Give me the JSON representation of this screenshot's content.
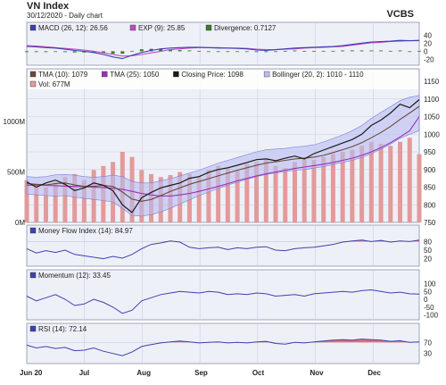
{
  "header": {
    "title": "VN Index",
    "subtitle": "30/12/2020 - Daily chart",
    "source": "VCBS"
  },
  "colors": {
    "panel_bg": "#eef0f8",
    "grid": "#c9cde0",
    "price_line": "#1a1a1a",
    "tma10": "#6b4a3a",
    "tma25": "#9a2fb8",
    "band_fill": "#b9bdf0",
    "band_line": "#7a80d8",
    "volume": "#e39a9a",
    "macd": "#3b3fb0",
    "exp": "#c24ac2",
    "divergence": "#3a7a2a",
    "osc_line": "#4040b0",
    "overbought_fill": "#e05a5a"
  },
  "chart_data": {
    "type": "line",
    "x_labels": [
      "Jun 20",
      "Jul",
      "Aug",
      "Sep",
      "Oct",
      "Nov",
      "Dec"
    ],
    "macd_panel": {
      "legend": [
        {
          "label": "MACD (26, 12): 26.56",
          "swatch": "macd"
        },
        {
          "label": "EXP (9): 25.85",
          "swatch": "exp"
        },
        {
          "label": "Divergence: 0.7127",
          "swatch": "divergence"
        }
      ],
      "ticks": [
        "40",
        "20",
        "0",
        "-20"
      ],
      "ylim": [
        -30,
        45
      ],
      "macd": [
        12,
        11,
        9,
        8,
        5,
        2,
        0,
        -3,
        -8,
        -14,
        -18,
        -10,
        -3,
        2,
        6,
        8,
        9,
        10,
        10,
        9,
        8,
        8,
        7,
        6,
        3,
        2,
        4,
        6,
        8,
        9,
        10,
        11,
        12,
        14,
        17,
        20,
        23,
        24,
        25,
        27,
        26,
        27
      ],
      "exp": [
        14,
        13,
        11,
        9,
        7,
        5,
        3,
        0,
        -4,
        -8,
        -12,
        -11,
        -8,
        -4,
        0,
        4,
        6,
        8,
        9,
        9,
        9,
        8,
        8,
        7,
        5,
        4,
        4,
        5,
        6,
        8,
        9,
        10,
        11,
        12,
        15,
        18,
        21,
        22,
        24,
        25,
        26,
        26
      ],
      "divergence": [
        -2,
        -2,
        -2,
        -1,
        -2,
        -3,
        -3,
        -3,
        -4,
        -6,
        -6,
        1,
        5,
        6,
        6,
        4,
        3,
        2,
        1,
        0,
        -1,
        0,
        -1,
        -1,
        -2,
        -2,
        0,
        1,
        2,
        1,
        1,
        1,
        1,
        2,
        2,
        2,
        2,
        2,
        1,
        2,
        0,
        1
      ]
    },
    "price_panel": {
      "legend": [
        {
          "label": "TMA (10): 1079",
          "swatch": "tma10"
        },
        {
          "label": "TMA (25): 1050",
          "swatch": "tma25"
        },
        {
          "label": "Closing Price: 1098",
          "swatch": "price_line"
        },
        {
          "label": "Bollinger (20, 2): 1010 - 1110",
          "swatch": "band_fill"
        },
        {
          "label": "Vol: 677M",
          "swatch": "volume"
        }
      ],
      "right_ticks": [
        "1150",
        "1100",
        "1050",
        "1000",
        "950",
        "900",
        "850",
        "800",
        "750"
      ],
      "left_ticks": [
        "1000M",
        "500M",
        "0M"
      ],
      "ylim": [
        750,
        1150
      ],
      "vol_lim": [
        0,
        1400
      ],
      "close": [
        865,
        850,
        862,
        870,
        858,
        840,
        848,
        862,
        855,
        840,
        800,
        778,
        820,
        835,
        848,
        855,
        862,
        875,
        880,
        892,
        900,
        905,
        912,
        920,
        928,
        930,
        925,
        932,
        938,
        930,
        945,
        955,
        965,
        975,
        985,
        1000,
        1025,
        1040,
        1060,
        1085,
        1075,
        1098
      ],
      "tma10": [
        860,
        858,
        856,
        860,
        862,
        856,
        852,
        852,
        855,
        852,
        836,
        816,
        810,
        815,
        826,
        838,
        848,
        858,
        866,
        874,
        882,
        890,
        898,
        905,
        912,
        918,
        922,
        926,
        930,
        932,
        935,
        940,
        948,
        956,
        965,
        976,
        990,
        1005,
        1022,
        1042,
        1060,
        1079
      ],
      "tma25": [
        855,
        856,
        855,
        854,
        853,
        852,
        851,
        850,
        849,
        847,
        844,
        838,
        832,
        828,
        825,
        825,
        828,
        832,
        838,
        845,
        852,
        860,
        868,
        875,
        882,
        888,
        893,
        898,
        903,
        907,
        911,
        915,
        920,
        926,
        932,
        940,
        950,
        962,
        976,
        992,
        1010,
        1050
      ],
      "boll_upper": [
        880,
        878,
        880,
        885,
        886,
        884,
        880,
        878,
        880,
        884,
        880,
        866,
        862,
        862,
        868,
        874,
        882,
        890,
        898,
        908,
        918,
        926,
        934,
        942,
        950,
        956,
        958,
        960,
        964,
        966,
        970,
        978,
        988,
        998,
        1010,
        1025,
        1045,
        1062,
        1078,
        1095,
        1105,
        1110
      ],
      "boll_lower": [
        830,
        828,
        826,
        825,
        826,
        822,
        818,
        815,
        812,
        808,
        790,
        770,
        768,
        772,
        780,
        790,
        802,
        814,
        826,
        836,
        846,
        856,
        864,
        872,
        880,
        886,
        890,
        894,
        898,
        900,
        904,
        908,
        914,
        920,
        926,
        934,
        945,
        958,
        972,
        988,
        1000,
        1010
      ],
      "volume": [
        420,
        380,
        350,
        400,
        450,
        480,
        420,
        520,
        560,
        600,
        700,
        650,
        520,
        480,
        450,
        470,
        500,
        480,
        460,
        520,
        560,
        540,
        520,
        580,
        600,
        620,
        560,
        540,
        600,
        640,
        620,
        650,
        680,
        700,
        720,
        760,
        800,
        780,
        760,
        800,
        840,
        677
      ]
    },
    "mfi_panel": {
      "legend": [
        {
          "label": "Money Flow Index (14): 84.97",
          "swatch": "osc_line"
        }
      ],
      "ticks": [
        "80",
        "50",
        "20"
      ],
      "ylim": [
        0,
        100
      ],
      "threshold": 80,
      "values": [
        55,
        40,
        48,
        42,
        50,
        35,
        30,
        25,
        20,
        28,
        22,
        35,
        55,
        70,
        75,
        82,
        78,
        60,
        55,
        58,
        60,
        52,
        58,
        55,
        60,
        62,
        50,
        48,
        55,
        58,
        60,
        65,
        70,
        78,
        82,
        85,
        80,
        84,
        78,
        82,
        80,
        85
      ]
    },
    "momentum_panel": {
      "legend": [
        {
          "label": "Momentum (12): 33.45",
          "swatch": "osc_line"
        }
      ],
      "ticks": [
        "100",
        "50",
        "0",
        "-50",
        "-100"
      ],
      "ylim": [
        -120,
        120
      ],
      "values": [
        20,
        -10,
        10,
        30,
        0,
        -40,
        -30,
        0,
        -20,
        -50,
        -90,
        -70,
        -10,
        10,
        30,
        40,
        50,
        45,
        40,
        50,
        45,
        30,
        35,
        30,
        40,
        35,
        20,
        25,
        30,
        20,
        35,
        40,
        45,
        50,
        45,
        55,
        60,
        50,
        40,
        45,
        35,
        33
      ]
    },
    "rsi_panel": {
      "legend": [
        {
          "label": "RSI (14): 72.14",
          "swatch": "osc_line"
        }
      ],
      "ticks": [
        "70",
        "30"
      ],
      "ylim": [
        0,
        100
      ],
      "threshold": 70,
      "values": [
        60,
        50,
        55,
        48,
        52,
        40,
        42,
        50,
        38,
        30,
        22,
        35,
        55,
        62,
        68,
        72,
        75,
        72,
        68,
        70,
        72,
        68,
        70,
        68,
        72,
        74,
        66,
        64,
        70,
        68,
        72,
        75,
        78,
        80,
        78,
        82,
        80,
        78,
        74,
        76,
        70,
        72
      ]
    }
  }
}
